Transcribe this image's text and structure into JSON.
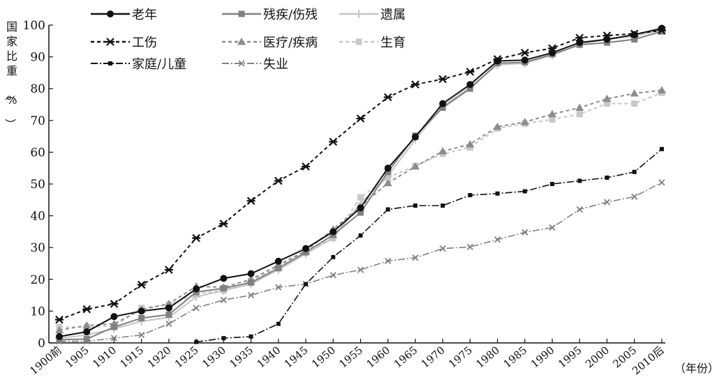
{
  "chart_data": {
    "type": "line",
    "title": "",
    "ylabel": "国家比重（%）",
    "xunit": "（年份）",
    "ylim": [
      0,
      100
    ],
    "yticks": [
      0,
      10,
      20,
      30,
      40,
      50,
      60,
      70,
      80,
      90,
      100
    ],
    "grid": false,
    "legend_placement": "top-left",
    "categories": [
      "1900前",
      "1905",
      "1910",
      "1915",
      "1920",
      "1925",
      "1930",
      "1935",
      "1940",
      "1945",
      "1950",
      "1955",
      "1960",
      "1965",
      "1970",
      "1975",
      "1980",
      "1985",
      "1990",
      "1995",
      "2000",
      "2005",
      "2010后"
    ],
    "series": [
      {
        "name": "老年",
        "color": "#111111",
        "dash": "",
        "width": 2,
        "marker": "circle",
        "values": [
          2.0,
          3.5,
          8.3,
          10.0,
          11.0,
          17.0,
          20.3,
          21.8,
          25.7,
          29.7,
          35.0,
          42.5,
          55.0,
          64.8,
          75.3,
          81.3,
          88.7,
          89.0,
          91.3,
          94.5,
          95.5,
          97.0,
          99.0
        ]
      },
      {
        "name": "残疾/伤残",
        "color": "#808080",
        "dash": "",
        "width": 2,
        "marker": "square",
        "values": [
          1.0,
          1.2,
          5.0,
          7.8,
          8.9,
          16.0,
          17.2,
          19.0,
          23.5,
          28.5,
          34.0,
          41.0,
          53.8,
          65.2,
          74.0,
          80.0,
          88.0,
          88.3,
          90.8,
          93.8,
          94.5,
          95.5,
          98.0
        ]
      },
      {
        "name": "遗属",
        "color": "#c4c4c4",
        "dash": "",
        "width": 2,
        "marker": "plus",
        "values": [
          1.5,
          2.5,
          4.5,
          6.8,
          8.0,
          14.5,
          16.5,
          18.5,
          23.0,
          28.0,
          33.0,
          44.0,
          52.5,
          64.0,
          74.5,
          80.5,
          87.5,
          88.0,
          90.5,
          94.0,
          95.5,
          96.5,
          98.5
        ]
      },
      {
        "name": "工伤",
        "color": "#111111",
        "dash": "5,4",
        "width": 2,
        "marker": "star",
        "values": [
          7.3,
          10.6,
          12.3,
          18.3,
          23.0,
          33.0,
          37.5,
          44.7,
          51.0,
          55.5,
          63.3,
          70.6,
          77.3,
          81.3,
          83.0,
          85.3,
          89.3,
          91.3,
          92.7,
          96.0,
          96.7,
          97.3,
          98.3
        ]
      },
      {
        "name": "医疗/疾病",
        "color": "#8c8c8c",
        "dash": "5,4",
        "width": 2,
        "marker": "triangle",
        "values": [
          4.0,
          5.5,
          6.0,
          10.5,
          12.3,
          17.8,
          17.5,
          20.0,
          24.5,
          29.0,
          35.7,
          43.0,
          50.3,
          55.5,
          60.3,
          62.5,
          68.0,
          69.5,
          72.0,
          74.0,
          76.8,
          78.5,
          79.5
        ]
      },
      {
        "name": "生育",
        "color": "#c8c8c8",
        "dash": "5,4",
        "width": 2,
        "marker": "square",
        "values": [
          5.0,
          5.0,
          5.3,
          11.0,
          12.0,
          15.5,
          16.5,
          19.5,
          24.0,
          29.0,
          33.0,
          45.8,
          52.0,
          55.7,
          59.5,
          61.5,
          67.5,
          69.0,
          70.3,
          72.0,
          75.3,
          75.3,
          78.7
        ]
      },
      {
        "name": "家庭/儿童",
        "color": "#111111",
        "dash": "10,3,2,3",
        "width": 1.6,
        "marker": "smallsquare",
        "values": [
          null,
          null,
          null,
          null,
          null,
          0.3,
          1.5,
          2.0,
          6.0,
          18.5,
          27.0,
          33.8,
          42.0,
          43.2,
          43.2,
          46.5,
          47.0,
          47.7,
          50.0,
          51.0,
          52.0,
          53.8,
          61.0
        ]
      },
      {
        "name": "失业",
        "color": "#808080",
        "dash": "10,3,2,3",
        "width": 1.6,
        "marker": "x",
        "values": [
          0.5,
          0.5,
          1.5,
          2.5,
          6.0,
          11.0,
          13.5,
          15.0,
          17.5,
          18.5,
          21.3,
          23.0,
          25.8,
          26.8,
          29.7,
          30.2,
          32.5,
          34.8,
          36.3,
          42.0,
          44.3,
          46.0,
          50.5
        ]
      }
    ]
  }
}
